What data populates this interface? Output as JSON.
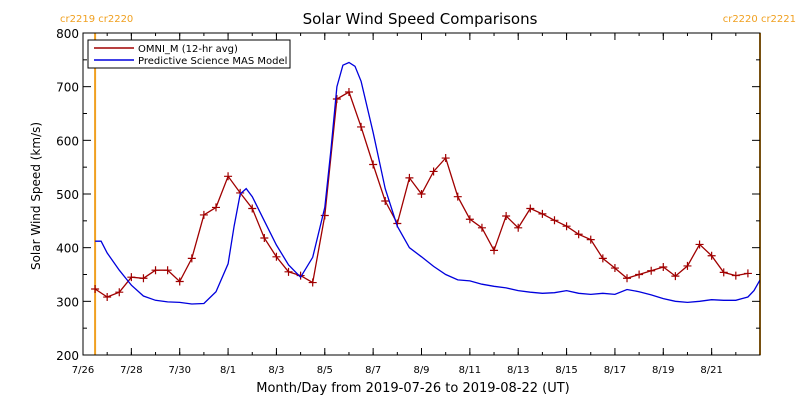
{
  "chart_data": {
    "type": "line",
    "title": "Solar Wind Speed Comparisons",
    "xlabel": "Month/Day from 2019-07-26 to 2019-08-22 (UT)",
    "ylabel": "Solar Wind Speed (km/s)",
    "ylim": [
      200,
      800
    ],
    "xlim": [
      "2019-07-26",
      "2019-08-23"
    ],
    "y_ticks": [
      200,
      300,
      400,
      500,
      600,
      700,
      800
    ],
    "x_ticks": [
      {
        "date": "2019-07-26",
        "label": "7/26"
      },
      {
        "date": "2019-07-28",
        "label": "7/28"
      },
      {
        "date": "2019-07-30",
        "label": "7/30"
      },
      {
        "date": "2019-08-01",
        "label": "8/1"
      },
      {
        "date": "2019-08-03",
        "label": "8/3"
      },
      {
        "date": "2019-08-05",
        "label": "8/5"
      },
      {
        "date": "2019-08-07",
        "label": "8/7"
      },
      {
        "date": "2019-08-09",
        "label": "8/9"
      },
      {
        "date": "2019-08-11",
        "label": "8/11"
      },
      {
        "date": "2019-08-13",
        "label": "8/13"
      },
      {
        "date": "2019-08-15",
        "label": "8/15"
      },
      {
        "date": "2019-08-17",
        "label": "8/17"
      },
      {
        "date": "2019-08-19",
        "label": "8/19"
      },
      {
        "date": "2019-08-21",
        "label": "8/21"
      }
    ],
    "legend_position": "top-left",
    "grid": false,
    "carrington_markers": [
      {
        "date": "2019-07-26 12:00",
        "label": "cr2219 cr2220",
        "label_side": "left"
      },
      {
        "date": "2019-08-22 24:00",
        "label": "cr2220 cr2221",
        "label_side": "right"
      }
    ],
    "marker_color": "#f0a020",
    "series": [
      {
        "name": "OMNI_M (12-hr avg)",
        "color": "#a00000",
        "marker": "plus",
        "x": [
          "2019-07-26 12:00",
          "2019-07-27 00:00",
          "2019-07-27 12:00",
          "2019-07-28 00:00",
          "2019-07-28 12:00",
          "2019-07-29 00:00",
          "2019-07-29 12:00",
          "2019-07-30 00:00",
          "2019-07-30 12:00",
          "2019-07-31 00:00",
          "2019-07-31 12:00",
          "2019-08-01 00:00",
          "2019-08-01 12:00",
          "2019-08-02 00:00",
          "2019-08-02 12:00",
          "2019-08-03 00:00",
          "2019-08-03 12:00",
          "2019-08-04 00:00",
          "2019-08-04 12:00",
          "2019-08-05 00:00",
          "2019-08-05 12:00",
          "2019-08-06 00:00",
          "2019-08-06 12:00",
          "2019-08-07 00:00",
          "2019-08-07 12:00",
          "2019-08-08 00:00",
          "2019-08-08 12:00",
          "2019-08-09 00:00",
          "2019-08-09 12:00",
          "2019-08-10 00:00",
          "2019-08-10 12:00",
          "2019-08-11 00:00",
          "2019-08-11 12:00",
          "2019-08-12 00:00",
          "2019-08-12 12:00",
          "2019-08-13 00:00",
          "2019-08-13 12:00",
          "2019-08-14 00:00",
          "2019-08-14 12:00",
          "2019-08-15 00:00",
          "2019-08-15 12:00",
          "2019-08-16 00:00",
          "2019-08-16 12:00",
          "2019-08-17 00:00",
          "2019-08-17 12:00",
          "2019-08-18 00:00",
          "2019-08-18 12:00",
          "2019-08-19 00:00",
          "2019-08-19 12:00",
          "2019-08-20 00:00",
          "2019-08-20 12:00",
          "2019-08-21 00:00",
          "2019-08-21 12:00",
          "2019-08-22 00:00",
          "2019-08-22 12:00"
        ],
        "y": [
          323,
          308,
          317,
          345,
          343,
          358,
          358,
          337,
          380,
          461,
          475,
          533,
          502,
          473,
          418,
          383,
          355,
          348,
          335,
          460,
          677,
          690,
          625,
          555,
          487,
          445,
          530,
          500,
          542,
          567,
          495,
          453,
          437,
          395,
          459,
          437,
          473,
          463,
          451,
          440,
          425,
          415,
          380,
          362,
          343,
          350,
          357,
          364,
          347,
          366,
          406,
          385,
          354,
          348,
          352
        ]
      },
      {
        "name": "Predictive Science MAS Model",
        "color": "#0000dd",
        "marker": "none",
        "x": [
          "2019-07-26 12:00",
          "2019-07-26 18:00",
          "2019-07-27 00:00",
          "2019-07-27 12:00",
          "2019-07-28 00:00",
          "2019-07-28 12:00",
          "2019-07-29 00:00",
          "2019-07-29 12:00",
          "2019-07-30 00:00",
          "2019-07-30 12:00",
          "2019-07-31 00:00",
          "2019-07-31 12:00",
          "2019-08-01 00:00",
          "2019-08-01 06:00",
          "2019-08-01 12:00",
          "2019-08-01 18:00",
          "2019-08-02 00:00",
          "2019-08-02 12:00",
          "2019-08-03 00:00",
          "2019-08-03 12:00",
          "2019-08-04 00:00",
          "2019-08-04 12:00",
          "2019-08-05 00:00",
          "2019-08-05 06:00",
          "2019-08-05 12:00",
          "2019-08-05 18:00",
          "2019-08-06 00:00",
          "2019-08-06 06:00",
          "2019-08-06 12:00",
          "2019-08-07 00:00",
          "2019-08-07 12:00",
          "2019-08-08 00:00",
          "2019-08-08 12:00",
          "2019-08-09 00:00",
          "2019-08-09 12:00",
          "2019-08-10 00:00",
          "2019-08-10 12:00",
          "2019-08-11 00:00",
          "2019-08-11 12:00",
          "2019-08-12 00:00",
          "2019-08-12 12:00",
          "2019-08-13 00:00",
          "2019-08-13 12:00",
          "2019-08-14 00:00",
          "2019-08-14 12:00",
          "2019-08-15 00:00",
          "2019-08-15 12:00",
          "2019-08-16 00:00",
          "2019-08-16 12:00",
          "2019-08-17 00:00",
          "2019-08-17 12:00",
          "2019-08-18 00:00",
          "2019-08-18 12:00",
          "2019-08-19 00:00",
          "2019-08-19 12:00",
          "2019-08-20 00:00",
          "2019-08-20 12:00",
          "2019-08-21 00:00",
          "2019-08-21 12:00",
          "2019-08-22 00:00",
          "2019-08-22 06:00",
          "2019-08-22 12:00",
          "2019-08-22 18:00",
          "2019-08-23 00:00"
        ],
        "y": [
          412,
          412,
          390,
          358,
          330,
          310,
          302,
          299,
          298,
          295,
          296,
          318,
          370,
          440,
          500,
          510,
          495,
          450,
          405,
          368,
          345,
          382,
          475,
          580,
          700,
          740,
          745,
          738,
          710,
          615,
          510,
          440,
          400,
          383,
          365,
          350,
          340,
          338,
          332,
          328,
          325,
          320,
          317,
          315,
          316,
          320,
          315,
          313,
          315,
          313,
          322,
          318,
          312,
          305,
          300,
          298,
          300,
          303,
          302,
          302,
          305,
          308,
          320,
          340
        ]
      }
    ]
  }
}
